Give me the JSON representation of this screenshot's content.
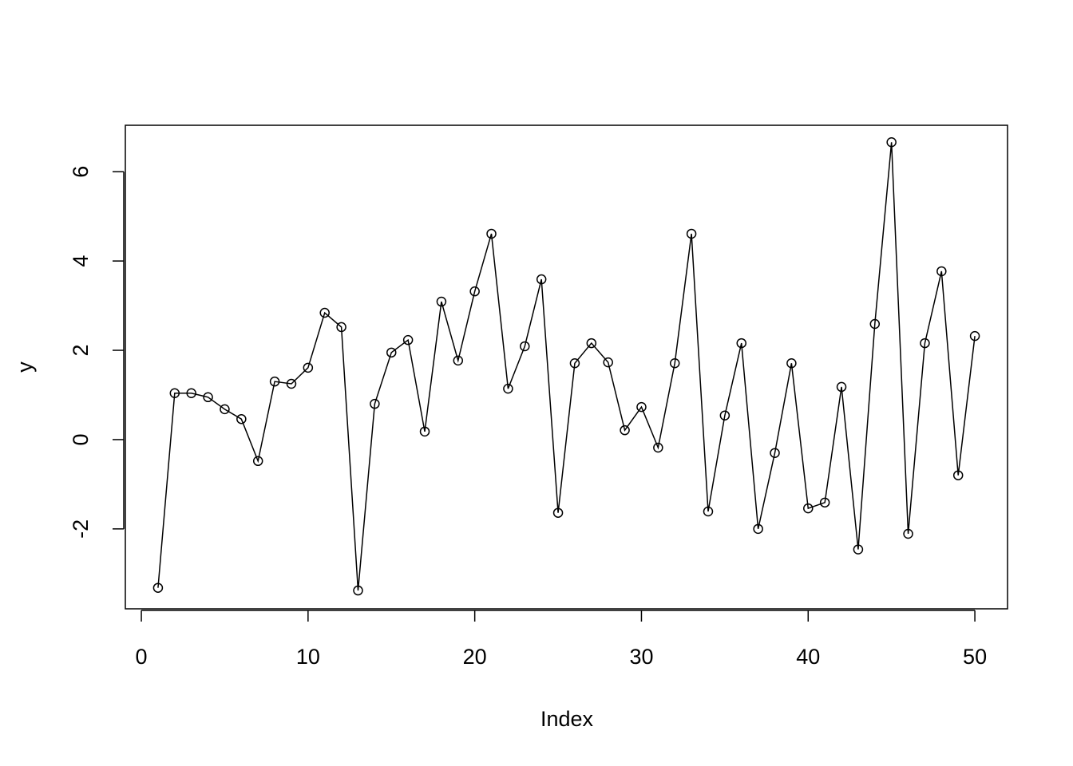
{
  "chart_data": {
    "type": "line",
    "xlabel": "Index",
    "ylabel": "y",
    "color": "#000000",
    "markers": "circle",
    "x": [
      1,
      2,
      3,
      4,
      5,
      6,
      7,
      8,
      9,
      10,
      11,
      12,
      13,
      14,
      15,
      16,
      17,
      18,
      19,
      20,
      21,
      22,
      23,
      24,
      25,
      26,
      27,
      28,
      29,
      30,
      31,
      32,
      33,
      34,
      35,
      36,
      37,
      38,
      39,
      40,
      41,
      42,
      43,
      44,
      45,
      46,
      47,
      48,
      49,
      50
    ],
    "values": [
      -3.32,
      1.04,
      1.04,
      0.95,
      0.68,
      0.46,
      -0.48,
      1.3,
      1.25,
      1.61,
      2.84,
      2.52,
      -3.38,
      0.8,
      1.95,
      2.23,
      0.18,
      3.09,
      1.77,
      3.32,
      4.61,
      1.14,
      2.09,
      3.59,
      -1.64,
      1.71,
      2.16,
      1.73,
      0.21,
      0.73,
      -0.18,
      1.71,
      4.61,
      -1.61,
      0.54,
      2.16,
      -2.0,
      -0.3,
      1.71,
      -1.54,
      -1.41,
      1.18,
      -2.46,
      2.59,
      6.66,
      -2.11,
      2.16,
      3.77,
      -0.8,
      2.32
    ],
    "xlim": [
      -0.96,
      51.96
    ],
    "ylim": [
      -3.79,
      7.04
    ],
    "xticks": [
      0,
      10,
      20,
      30,
      40,
      50
    ],
    "yticks": [
      -2,
      0,
      2,
      4,
      6
    ]
  }
}
